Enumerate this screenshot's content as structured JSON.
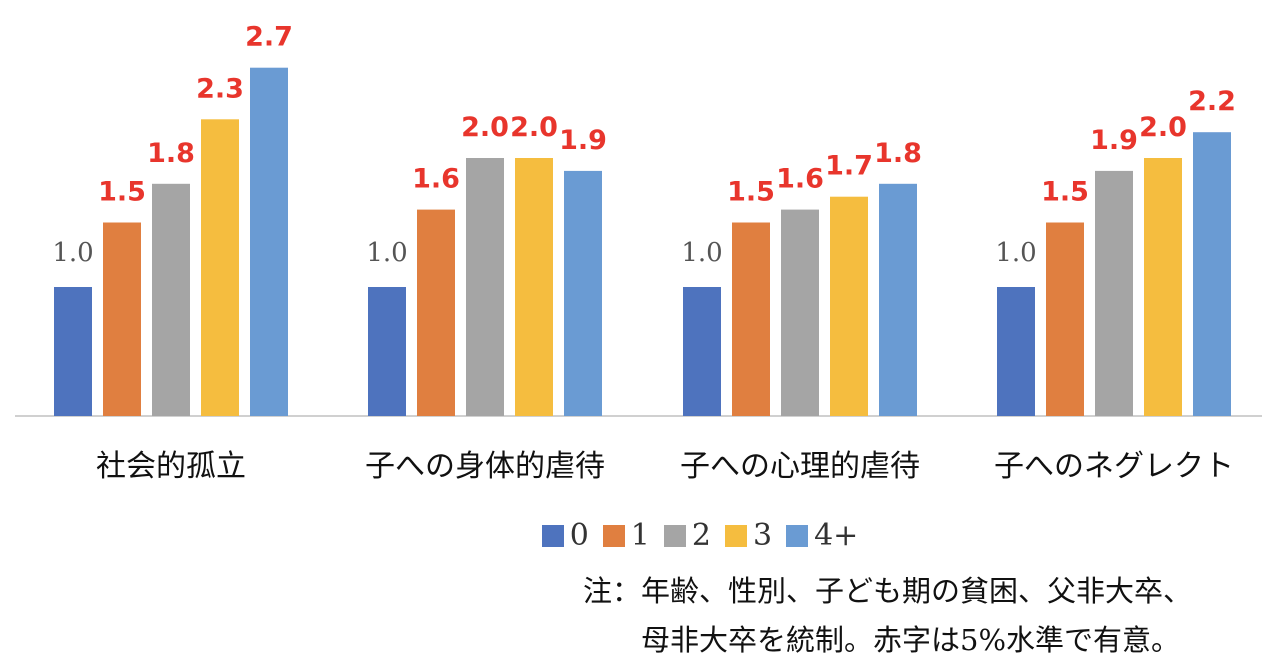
{
  "chart_data": {
    "type": "bar",
    "categories": [
      "社会的孤立",
      "子への身体的虐待",
      "子への心理的虐待",
      "子へのネグレクト"
    ],
    "series": [
      {
        "name": "0",
        "color": "#4e73be",
        "values": [
          1.0,
          1.0,
          1.0,
          1.0
        ],
        "significant": [
          false,
          false,
          false,
          false
        ]
      },
      {
        "name": "1",
        "color": "#e07f40",
        "values": [
          1.5,
          1.6,
          1.5,
          1.5
        ],
        "significant": [
          true,
          true,
          true,
          true
        ]
      },
      {
        "name": "2",
        "color": "#a5a5a5",
        "values": [
          1.8,
          2.0,
          1.6,
          1.9
        ],
        "significant": [
          true,
          true,
          true,
          true
        ]
      },
      {
        "name": "3",
        "color": "#f5bd3f",
        "values": [
          2.3,
          2.0,
          1.7,
          2.0
        ],
        "significant": [
          true,
          true,
          true,
          true
        ]
      },
      {
        "name": "4+",
        "color": "#6a9bd3",
        "values": [
          2.7,
          1.9,
          1.8,
          2.2
        ],
        "significant": [
          true,
          true,
          true,
          true
        ]
      }
    ],
    "value_labels": [
      [
        "1.0",
        "1.5",
        "1.8",
        "2.3",
        "2.7"
      ],
      [
        "1.0",
        "1.6",
        "2.0",
        "2.0",
        "1.9"
      ],
      [
        "1.0",
        "1.5",
        "1.6",
        "1.7",
        "1.8"
      ],
      [
        "1.0",
        "1.5",
        "1.9",
        "2.0",
        "2.2"
      ]
    ],
    "ylim": [
      0,
      2.8
    ],
    "grid": false,
    "legend_position": "bottom",
    "label_colors": {
      "significant": "#e8352c",
      "normal": "#555555"
    },
    "notes": [
      "注：年齢、性別、子ども期の貧困、父非大卒、",
      "母非大卒を統制。赤字は5%水準で有意。"
    ]
  }
}
